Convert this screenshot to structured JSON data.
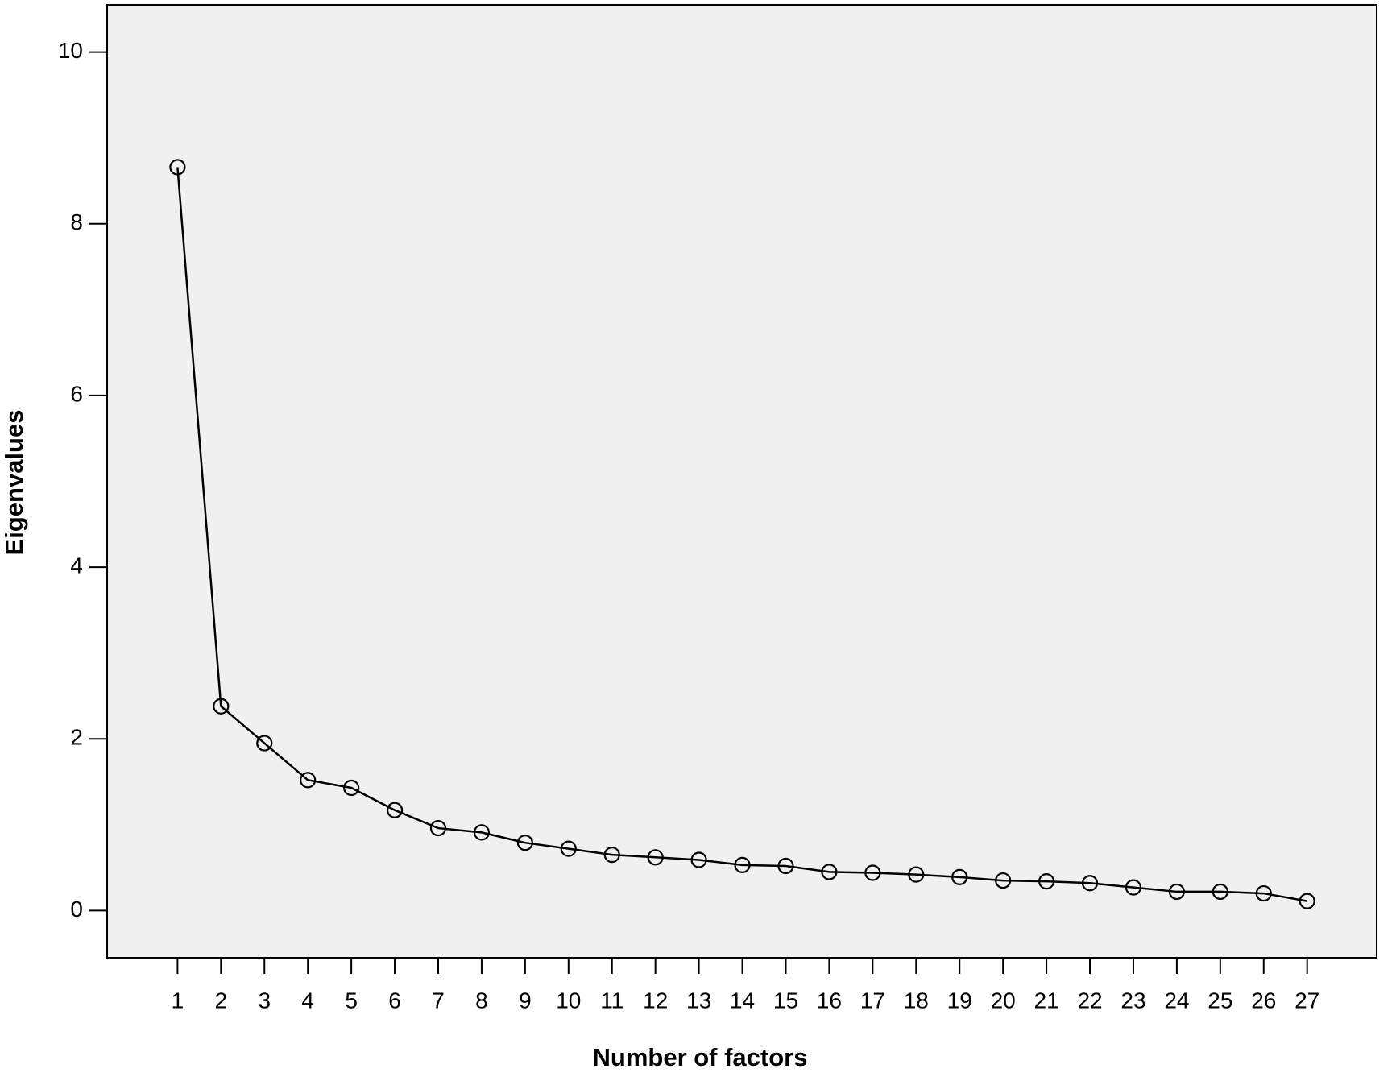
{
  "chart_data": {
    "type": "line",
    "x_label": "Number of factors",
    "y_label": "Eigenvalues",
    "x": [
      1,
      2,
      3,
      4,
      5,
      6,
      7,
      8,
      9,
      10,
      11,
      12,
      13,
      14,
      15,
      16,
      17,
      18,
      19,
      20,
      21,
      22,
      23,
      24,
      25,
      26,
      27
    ],
    "values": [
      8.66,
      2.38,
      1.95,
      1.52,
      1.43,
      1.17,
      0.96,
      0.91,
      0.79,
      0.72,
      0.65,
      0.62,
      0.59,
      0.53,
      0.52,
      0.45,
      0.44,
      0.42,
      0.39,
      0.35,
      0.34,
      0.32,
      0.27,
      0.22,
      0.22,
      0.2,
      0.11
    ],
    "color": "#000000",
    "xlim": [
      -0.62,
      28.6
    ],
    "xticks": [
      1,
      2,
      3,
      4,
      5,
      6,
      7,
      8,
      9,
      10,
      11,
      12,
      13,
      14,
      15,
      16,
      17,
      18,
      19,
      20,
      21,
      22,
      23,
      24,
      25,
      26,
      27
    ],
    "ylim": [
      -0.55,
      10.55
    ],
    "yticks": [
      0,
      2,
      4,
      6,
      8,
      10
    ],
    "grid": false,
    "markers": true
  }
}
